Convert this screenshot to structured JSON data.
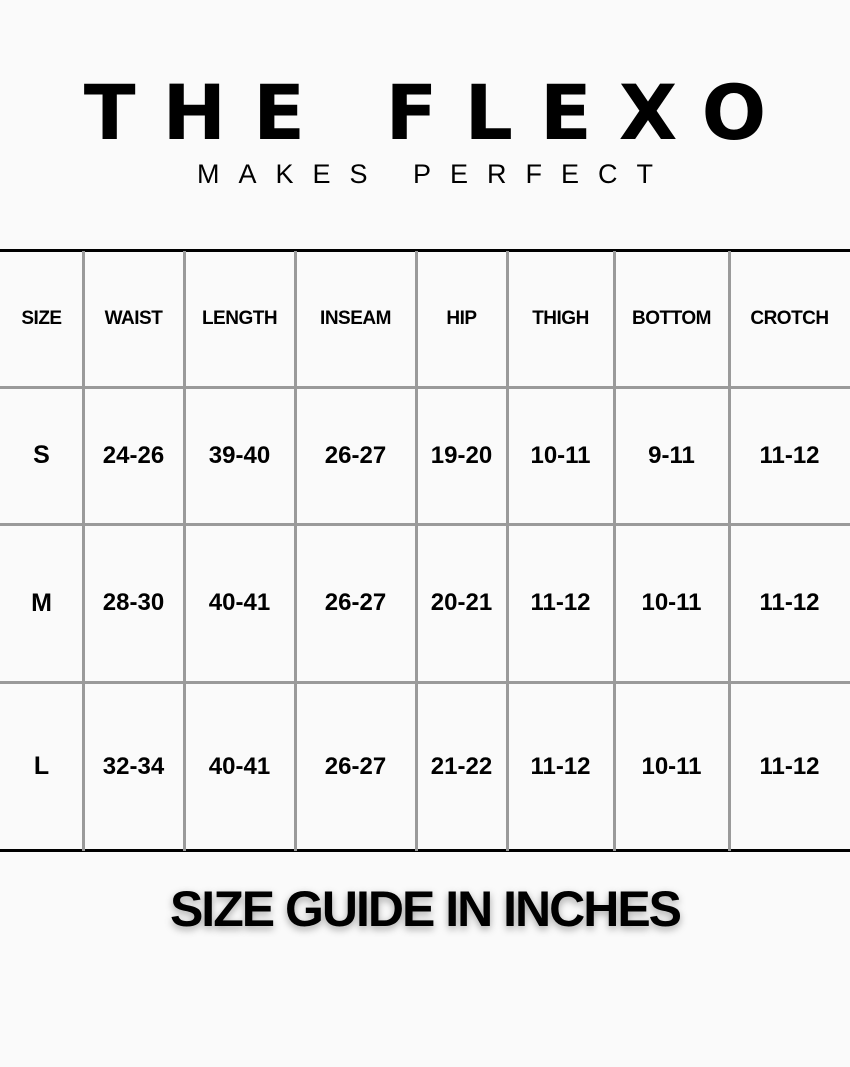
{
  "header": {
    "brand": "THE FLEXO",
    "tagline": "MAKES PERFECT"
  },
  "table": {
    "columns": [
      "SIZE",
      "WAIST",
      "LENGTH",
      "INSEAM",
      "HIP",
      "THIGH",
      "BOTTOM",
      "CROTCH"
    ],
    "rows": [
      [
        "S",
        "24-26",
        "39-40",
        "26-27",
        "19-20",
        "10-11",
        "9-11",
        "11-12"
      ],
      [
        "M",
        "28-30",
        "40-41",
        "26-27",
        "20-21",
        "11-12",
        "10-11",
        "11-12"
      ],
      [
        "L",
        "32-34",
        "40-41",
        "26-27",
        "21-22",
        "11-12",
        "10-11",
        "11-12"
      ]
    ]
  },
  "footer": {
    "caption": "SIZE GUIDE IN INCHES"
  },
  "colors": {
    "background": "#fafafa",
    "grid": "#9a9a9a",
    "text": "#000000"
  }
}
